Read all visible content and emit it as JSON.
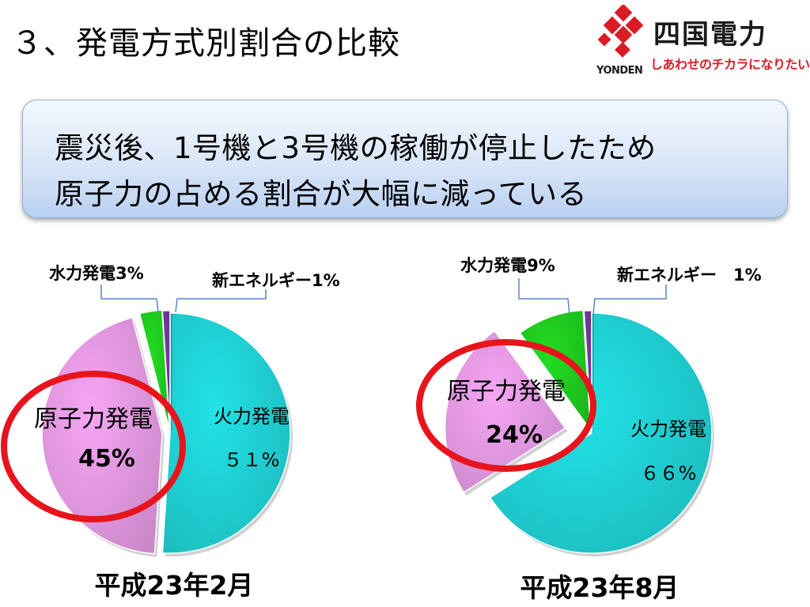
{
  "slide": {
    "title": "３、発電方式別割合の比較"
  },
  "logo": {
    "name": "四国電力",
    "en": "YONDEN",
    "tagline": "しあわせのチカラになりたい。",
    "brand_color": "#d81c25"
  },
  "callout": {
    "line1": "震災後、1号機と3号機の稼働が停止したため",
    "line2": "原子力の占める割合が大幅に減っている"
  },
  "highlight_color": "#e8141c",
  "chart_data": [
    {
      "type": "pie",
      "title": "平成23年2月",
      "slices": [
        {
          "name": "火力発電",
          "value": 51,
          "label": "５１%",
          "color": "#22e3e6"
        },
        {
          "name": "原子力発電",
          "value": 45,
          "label": "45%",
          "color": "#f6a6f4"
        },
        {
          "name": "水力発電",
          "value": 3,
          "label": "3%",
          "color": "#22dd22"
        },
        {
          "name": "新エネルギー",
          "value": 1,
          "label": "1%",
          "color": "#7a3aa6"
        }
      ],
      "callout_labels": {
        "hydro": "水力発電3%",
        "new_energy": "新エネルギー1%"
      },
      "highlighted_slice": "原子力発電"
    },
    {
      "type": "pie",
      "title": "平成23年8月",
      "slices": [
        {
          "name": "火力発電",
          "value": 66,
          "label": "６６%",
          "color": "#22e3e6"
        },
        {
          "name": "原子力発電",
          "value": 24,
          "label": "24%",
          "color": "#f6a6f4"
        },
        {
          "name": "水力発電",
          "value": 9,
          "label": "9%",
          "color": "#22dd22"
        },
        {
          "name": "新エネルギー",
          "value": 1,
          "label": "1%",
          "color": "#7a3aa6"
        }
      ],
      "callout_labels": {
        "hydro": "水力発電9%",
        "new_energy": "新エネルギー　1%"
      },
      "highlighted_slice": "原子力発電"
    }
  ]
}
